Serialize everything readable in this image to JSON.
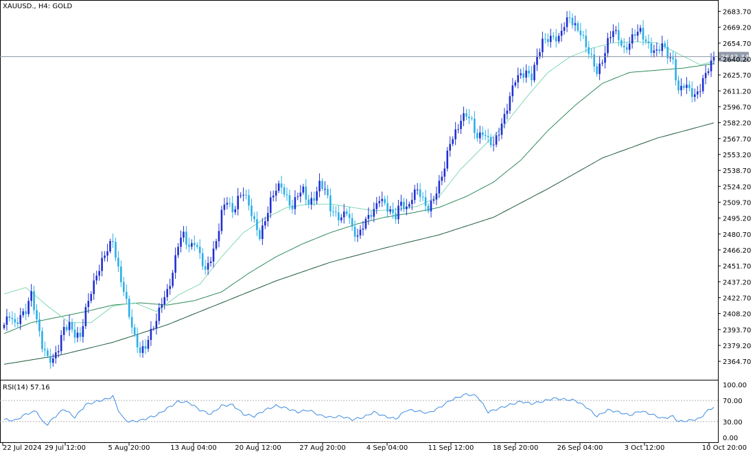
{
  "window": {
    "symbol_label": "XAUUSD., H4:  GOLD",
    "rsi_label": "RSI(14) 57.16"
  },
  "colors": {
    "bull": "#1f2fd0",
    "bear": "#2aaee8",
    "ma_fast": "#7fd9b0",
    "ma_mid": "#2f8a5a",
    "ma_slow": "#1f5a3c",
    "rsi": "#3c8be0",
    "price_line": "#8f9aa8",
    "price_tag_bg": "#8f9aa8"
  },
  "chart_data": [
    {
      "type": "candlestick",
      "title": "XAUUSD., H4:  GOLD",
      "ylim": [
        2351.0,
        2689.0
      ],
      "y_ticks": [
        "2683.70",
        "2669.20",
        "2654.70",
        "2640.20",
        "2625.70",
        "2611.20",
        "2596.70",
        "2582.20",
        "2567.70",
        "2553.20",
        "2538.70",
        "2524.20",
        "2509.70",
        "2495.20",
        "2480.70",
        "2466.20",
        "2451.70",
        "2437.20",
        "2422.70",
        "2408.20",
        "2393.70",
        "2379.20",
        "2364.70"
      ],
      "x_tick_labels": [
        "22 Jul 2024",
        "29 Jul 12:00",
        "5 Aug 20:00",
        "13 Aug 04:00",
        "20 Aug 12:00",
        "27 Aug 20:00",
        "4 Sep 04:00",
        "11 Sep 12:00",
        "18 Sep 20:00",
        "26 Sep 04:00",
        "3 Oct 12:00",
        "10 Oct 20:00"
      ],
      "current_price": 2642.34,
      "current_price_label": "2642.34",
      "close_path": [
        [
          0,
          2398
        ],
        [
          2,
          2405
        ],
        [
          4,
          2397
        ],
        [
          6,
          2408
        ],
        [
          8,
          2412
        ],
        [
          10,
          2425
        ],
        [
          12,
          2400
        ],
        [
          14,
          2380
        ],
        [
          16,
          2370
        ],
        [
          18,
          2365
        ],
        [
          20,
          2375
        ],
        [
          22,
          2395
        ],
        [
          24,
          2400
        ],
        [
          26,
          2390
        ],
        [
          28,
          2385
        ],
        [
          30,
          2410
        ],
        [
          32,
          2430
        ],
        [
          34,
          2445
        ],
        [
          36,
          2455
        ],
        [
          38,
          2465
        ],
        [
          40,
          2475
        ],
        [
          42,
          2450
        ],
        [
          44,
          2430
        ],
        [
          46,
          2405
        ],
        [
          48,
          2385
        ],
        [
          50,
          2375
        ],
        [
          52,
          2380
        ],
        [
          54,
          2390
        ],
        [
          56,
          2400
        ],
        [
          58,
          2420
        ],
        [
          60,
          2430
        ],
        [
          62,
          2445
        ],
        [
          64,
          2470
        ],
        [
          66,
          2480
        ],
        [
          68,
          2470
        ],
        [
          70,
          2475
        ],
        [
          72,
          2460
        ],
        [
          74,
          2445
        ],
        [
          76,
          2460
        ],
        [
          78,
          2475
        ],
        [
          80,
          2500
        ],
        [
          82,
          2510
        ],
        [
          84,
          2500
        ],
        [
          86,
          2515
        ],
        [
          88,
          2520
        ],
        [
          90,
          2505
        ],
        [
          92,
          2490
        ],
        [
          94,
          2480
        ],
        [
          96,
          2495
        ],
        [
          98,
          2510
        ],
        [
          100,
          2520
        ],
        [
          102,
          2525
        ],
        [
          104,
          2515
        ],
        [
          106,
          2505
        ],
        [
          108,
          2515
        ],
        [
          110,
          2520
        ],
        [
          112,
          2510
        ],
        [
          114,
          2515
        ],
        [
          116,
          2525
        ],
        [
          118,
          2520
        ],
        [
          120,
          2505
        ],
        [
          122,
          2500
        ],
        [
          124,
          2495
        ],
        [
          126,
          2500
        ],
        [
          128,
          2485
        ],
        [
          130,
          2480
        ],
        [
          132,
          2490
        ],
        [
          134,
          2495
        ],
        [
          136,
          2500
        ],
        [
          138,
          2515
        ],
        [
          140,
          2510
        ],
        [
          142,
          2500
        ],
        [
          144,
          2495
        ],
        [
          146,
          2510
        ],
        [
          148,
          2505
        ],
        [
          150,
          2515
        ],
        [
          152,
          2520
        ],
        [
          154,
          2510
        ],
        [
          156,
          2505
        ],
        [
          158,
          2515
        ],
        [
          160,
          2525
        ],
        [
          162,
          2540
        ],
        [
          164,
          2565
        ],
        [
          166,
          2575
        ],
        [
          168,
          2585
        ],
        [
          170,
          2588
        ],
        [
          172,
          2582
        ],
        [
          174,
          2570
        ],
        [
          176,
          2575
        ],
        [
          178,
          2565
        ],
        [
          180,
          2560
        ],
        [
          182,
          2575
        ],
        [
          184,
          2590
        ],
        [
          186,
          2605
        ],
        [
          188,
          2620
        ],
        [
          190,
          2625
        ],
        [
          192,
          2630
        ],
        [
          194,
          2625
        ],
        [
          196,
          2640
        ],
        [
          198,
          2655
        ],
        [
          200,
          2660
        ],
        [
          202,
          2662
        ],
        [
          204,
          2658
        ],
        [
          206,
          2670
        ],
        [
          208,
          2678
        ],
        [
          210,
          2672
        ],
        [
          212,
          2665
        ],
        [
          214,
          2650
        ],
        [
          216,
          2640
        ],
        [
          218,
          2630
        ],
        [
          220,
          2640
        ],
        [
          222,
          2655
        ],
        [
          224,
          2665
        ],
        [
          226,
          2660
        ],
        [
          228,
          2650
        ],
        [
          230,
          2655
        ],
        [
          232,
          2662
        ],
        [
          234,
          2665
        ],
        [
          236,
          2658
        ],
        [
          238,
          2650
        ],
        [
          240,
          2645
        ],
        [
          242,
          2652
        ],
        [
          244,
          2645
        ],
        [
          246,
          2640
        ],
        [
          248,
          2610
        ],
        [
          250,
          2615
        ],
        [
          252,
          2612
        ],
        [
          254,
          2608
        ],
        [
          256,
          2615
        ],
        [
          258,
          2625
        ],
        [
          260,
          2635
        ],
        [
          261,
          2642.34
        ]
      ],
      "ma_fast": [
        [
          0,
          2426
        ],
        [
          8,
          2432
        ],
        [
          16,
          2415
        ],
        [
          24,
          2400
        ],
        [
          32,
          2400
        ],
        [
          40,
          2415
        ],
        [
          48,
          2418
        ],
        [
          56,
          2410
        ],
        [
          64,
          2425
        ],
        [
          72,
          2435
        ],
        [
          80,
          2460
        ],
        [
          88,
          2482
        ],
        [
          96,
          2495
        ],
        [
          104,
          2505
        ],
        [
          112,
          2508
        ],
        [
          120,
          2508
        ],
        [
          128,
          2505
        ],
        [
          136,
          2502
        ],
        [
          144,
          2503
        ],
        [
          152,
          2506
        ],
        [
          160,
          2515
        ],
        [
          168,
          2540
        ],
        [
          176,
          2560
        ],
        [
          184,
          2580
        ],
        [
          192,
          2605
        ],
        [
          200,
          2628
        ],
        [
          208,
          2642
        ],
        [
          216,
          2650
        ],
        [
          224,
          2655
        ],
        [
          232,
          2656
        ],
        [
          240,
          2655
        ],
        [
          248,
          2645
        ],
        [
          256,
          2635
        ],
        [
          261,
          2638
        ]
      ],
      "ma_mid": [
        [
          0,
          2390
        ],
        [
          10,
          2400
        ],
        [
          20,
          2405
        ],
        [
          30,
          2410
        ],
        [
          40,
          2416
        ],
        [
          50,
          2418
        ],
        [
          60,
          2416
        ],
        [
          70,
          2420
        ],
        [
          80,
          2428
        ],
        [
          90,
          2445
        ],
        [
          100,
          2460
        ],
        [
          110,
          2472
        ],
        [
          120,
          2482
        ],
        [
          130,
          2490
        ],
        [
          140,
          2496
        ],
        [
          150,
          2500
        ],
        [
          160,
          2505
        ],
        [
          170,
          2515
        ],
        [
          180,
          2528
        ],
        [
          190,
          2548
        ],
        [
          200,
          2575
        ],
        [
          210,
          2598
        ],
        [
          220,
          2618
        ],
        [
          230,
          2628
        ],
        [
          240,
          2630
        ],
        [
          250,
          2632
        ],
        [
          261,
          2636
        ]
      ],
      "ma_slow": [
        [
          0,
          2362
        ],
        [
          20,
          2370
        ],
        [
          40,
          2382
        ],
        [
          60,
          2398
        ],
        [
          80,
          2418
        ],
        [
          100,
          2438
        ],
        [
          120,
          2455
        ],
        [
          140,
          2468
        ],
        [
          160,
          2480
        ],
        [
          180,
          2496
        ],
        [
          200,
          2522
        ],
        [
          220,
          2550
        ],
        [
          240,
          2568
        ],
        [
          261,
          2582
        ]
      ]
    },
    {
      "type": "line",
      "title": "RSI(14) 57.16",
      "ylim": [
        0,
        100
      ],
      "y_ticks": [
        "100.00",
        "70.00",
        "30.00",
        "0.00"
      ],
      "levels": [
        70,
        30
      ],
      "values": [
        [
          0,
          34
        ],
        [
          4,
          32
        ],
        [
          8,
          44
        ],
        [
          12,
          50
        ],
        [
          14,
          30
        ],
        [
          16,
          25
        ],
        [
          18,
          36
        ],
        [
          22,
          54
        ],
        [
          26,
          38
        ],
        [
          30,
          62
        ],
        [
          34,
          68
        ],
        [
          38,
          73
        ],
        [
          40,
          78
        ],
        [
          42,
          52
        ],
        [
          44,
          35
        ],
        [
          46,
          30
        ],
        [
          50,
          32
        ],
        [
          56,
          42
        ],
        [
          60,
          55
        ],
        [
          64,
          68
        ],
        [
          68,
          66
        ],
        [
          72,
          52
        ],
        [
          76,
          44
        ],
        [
          80,
          60
        ],
        [
          84,
          62
        ],
        [
          88,
          44
        ],
        [
          92,
          40
        ],
        [
          96,
          52
        ],
        [
          100,
          60
        ],
        [
          104,
          55
        ],
        [
          108,
          48
        ],
        [
          112,
          52
        ],
        [
          116,
          42
        ],
        [
          120,
          38
        ],
        [
          124,
          40
        ],
        [
          128,
          34
        ],
        [
          132,
          38
        ],
        [
          136,
          48
        ],
        [
          140,
          40
        ],
        [
          144,
          35
        ],
        [
          148,
          52
        ],
        [
          152,
          50
        ],
        [
          156,
          46
        ],
        [
          160,
          56
        ],
        [
          164,
          70
        ],
        [
          168,
          78
        ],
        [
          170,
          82
        ],
        [
          174,
          78
        ],
        [
          178,
          48
        ],
        [
          182,
          55
        ],
        [
          186,
          62
        ],
        [
          190,
          68
        ],
        [
          194,
          64
        ],
        [
          198,
          68
        ],
        [
          202,
          74
        ],
        [
          206,
          72
        ],
        [
          210,
          70
        ],
        [
          214,
          58
        ],
        [
          218,
          40
        ],
        [
          222,
          52
        ],
        [
          226,
          48
        ],
        [
          230,
          42
        ],
        [
          234,
          50
        ],
        [
          238,
          44
        ],
        [
          242,
          36
        ],
        [
          246,
          40
        ],
        [
          248,
          30
        ],
        [
          252,
          32
        ],
        [
          256,
          36
        ],
        [
          258,
          48
        ],
        [
          261,
          57.16
        ]
      ]
    }
  ]
}
